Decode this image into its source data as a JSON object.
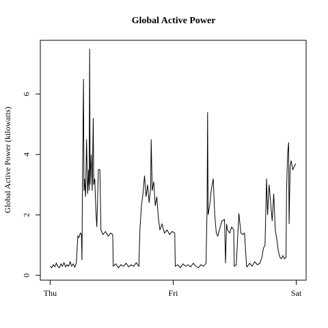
{
  "chart_data": {
    "type": "line",
    "title": "Global Active Power",
    "ylabel": "Global Active Power (kilowatts)",
    "x": [
      0,
      0.3,
      0.6,
      0.9,
      1.2,
      1.5,
      1.8,
      2.1,
      2.4,
      2.7,
      3.0,
      3.3,
      3.6,
      3.9,
      4.2,
      4.5,
      4.8,
      5.1,
      5.4,
      5.6,
      5.9,
      6.1,
      6.2,
      6.3,
      6.5,
      6.6,
      6.7,
      6.9,
      7.1,
      7.3,
      7.5,
      7.6,
      7.7,
      7.8,
      8.0,
      8.2,
      8.4,
      8.5,
      8.7,
      8.9,
      9.1,
      9.4,
      9.7,
      9.9,
      10.3,
      10.8,
      11.3,
      11.8,
      12.2,
      12.3,
      12.8,
      13.3,
      13.8,
      14.3,
      14.8,
      15.3,
      15.8,
      16.3,
      16.8,
      17.3,
      17.5,
      17.8,
      18.1,
      18.4,
      18.7,
      19.0,
      19.3,
      19.6,
      19.7,
      19.9,
      20.2,
      20.5,
      20.8,
      21.1,
      21.4,
      21.8,
      22.3,
      22.8,
      23.3,
      23.8,
      24.3,
      24.4,
      24.9,
      25.4,
      25.9,
      26.4,
      26.9,
      27.4,
      27.9,
      28.4,
      28.9,
      29.4,
      29.9,
      30.4,
      30.6,
      30.7,
      30.8,
      31.1,
      31.4,
      31.8,
      32.1,
      32.4,
      32.7,
      33.0,
      33.5,
      34.0,
      34.2,
      34.4,
      34.6,
      35.0,
      35.4,
      35.8,
      35.9,
      36.3,
      36.8,
      37.2,
      37.5,
      37.9,
      38.3,
      38.4,
      38.9,
      39.4,
      39.9,
      40.4,
      40.9,
      41.3,
      41.6,
      41.9,
      42.2,
      42.4,
      42.7,
      43.0,
      43.3,
      43.6,
      43.9,
      44.2,
      44.5,
      44.8,
      45.1,
      45.4,
      45.7,
      46.0,
      46.1,
      46.3,
      46.5,
      46.6,
      46.8,
      47.0,
      47.3,
      47.6,
      47.9
    ],
    "series": [
      {
        "name": "Global Active Power",
        "color": "#000000",
        "values": [
          0.3,
          0.25,
          0.35,
          0.28,
          0.4,
          0.3,
          0.25,
          0.38,
          0.3,
          0.42,
          0.28,
          0.35,
          0.3,
          0.45,
          0.3,
          0.38,
          0.27,
          0.4,
          1.3,
          1.25,
          1.4,
          1.35,
          0.5,
          3.0,
          6.5,
          2.8,
          3.2,
          2.6,
          4.5,
          2.7,
          3.5,
          2.8,
          7.5,
          3.0,
          4.0,
          2.8,
          5.2,
          3.0,
          3.2,
          2.2,
          1.6,
          3.5,
          3.5,
          1.5,
          1.35,
          1.45,
          1.3,
          1.4,
          1.35,
          0.3,
          0.38,
          0.25,
          0.35,
          0.3,
          0.4,
          0.28,
          0.35,
          0.3,
          0.42,
          0.3,
          1.5,
          2.3,
          2.7,
          3.3,
          2.6,
          3.0,
          2.4,
          2.9,
          4.5,
          2.8,
          3.1,
          2.3,
          2.6,
          1.9,
          1.5,
          1.7,
          1.4,
          1.5,
          1.35,
          1.45,
          1.4,
          0.3,
          0.35,
          0.25,
          0.38,
          0.3,
          0.35,
          0.28,
          0.4,
          0.3,
          0.25,
          0.35,
          0.3,
          0.4,
          2.2,
          5.4,
          2.0,
          2.3,
          2.8,
          3.2,
          2.0,
          1.4,
          1.3,
          1.5,
          1.8,
          1.85,
          0.4,
          1.7,
          1.5,
          1.4,
          1.6,
          1.5,
          0.3,
          0.35,
          2.05,
          1.4,
          1.35,
          1.4,
          0.3,
          0.28,
          0.4,
          0.3,
          0.45,
          0.35,
          0.4,
          0.6,
          0.9,
          1.0,
          3.2,
          2.0,
          3.0,
          2.4,
          1.8,
          2.7,
          1.5,
          1.2,
          0.8,
          0.6,
          0.55,
          0.65,
          0.55,
          0.6,
          2.8,
          4.0,
          4.4,
          1.7,
          3.6,
          3.8,
          3.5,
          3.6,
          3.7
        ]
      }
    ],
    "xlim": [
      -1.92,
      49.92
    ],
    "xticks": [
      {
        "value": 0,
        "label": "Thu"
      },
      {
        "value": 24,
        "label": "Fri"
      },
      {
        "value": 48,
        "label": "Sat"
      }
    ],
    "ylim": [
      -0.16,
      7.78
    ],
    "yticks": [
      0,
      2,
      4,
      6
    ],
    "grid": false
  }
}
